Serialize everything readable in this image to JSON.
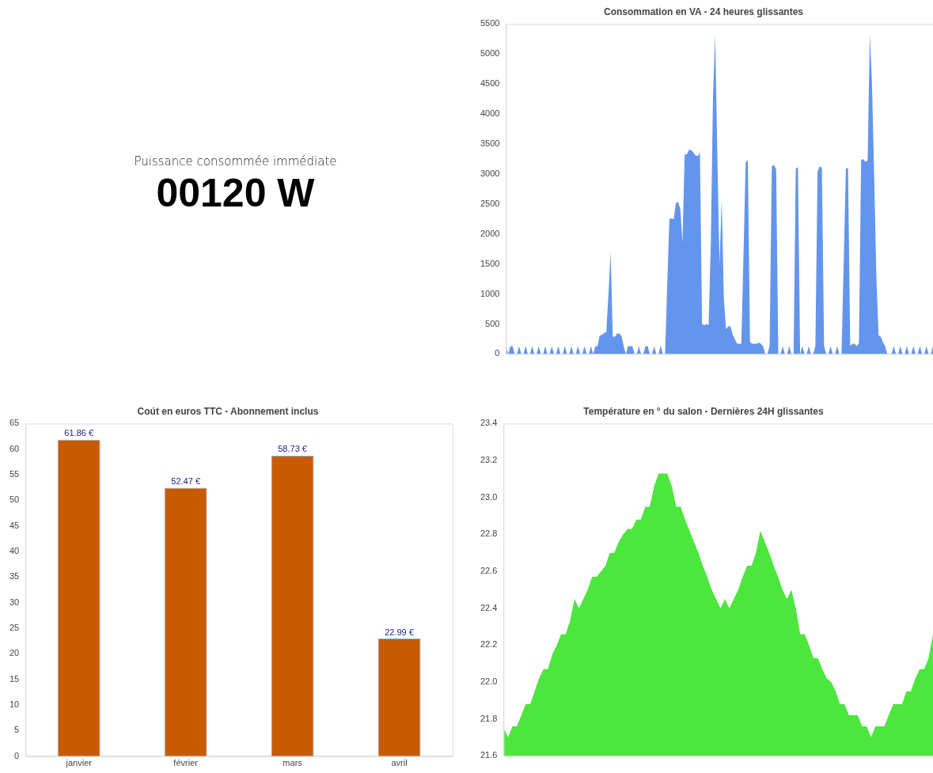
{
  "chart_data": [
    {
      "type": "other",
      "title": "Puissance consommée immédiate",
      "annotations": [
        "00120 W"
      ]
    },
    {
      "type": "area",
      "title": "Consommation en VA - 24 heures glissantes",
      "categories": [
        null,
        null,
        null,
        null,
        null,
        null,
        null,
        null,
        null,
        null,
        null,
        null,
        null,
        null,
        null,
        null,
        null,
        null,
        null,
        null,
        null,
        null,
        null,
        null,
        null,
        null,
        null,
        null,
        null,
        null,
        null,
        null,
        null,
        null,
        null,
        null,
        null,
        null,
        null,
        null,
        null,
        null,
        null,
        null,
        null,
        null,
        null,
        null,
        null,
        null,
        null,
        null,
        null,
        null,
        null,
        null,
        null,
        null,
        null,
        null,
        null,
        null,
        null,
        null,
        null,
        null,
        null,
        null,
        null,
        null,
        null,
        null,
        null,
        null,
        null,
        null,
        null,
        null,
        null,
        null,
        null,
        null,
        null,
        null,
        null,
        null,
        null,
        null,
        null,
        null,
        null,
        null,
        null,
        null,
        null,
        null,
        null,
        null,
        null,
        null,
        null,
        null,
        null,
        null,
        null,
        null,
        null,
        null,
        null,
        null,
        null,
        null,
        null,
        null,
        null,
        null,
        null,
        null,
        null,
        null,
        null,
        null,
        null,
        null,
        null,
        null,
        null,
        null,
        null,
        null,
        null,
        null,
        null,
        null,
        null,
        null,
        null,
        null,
        null,
        null,
        null,
        null,
        null,
        null,
        null,
        null,
        null,
        null,
        null,
        null,
        null,
        null,
        null,
        null,
        null,
        null,
        null,
        null,
        null,
        null,
        null,
        null,
        null,
        null,
        null,
        null,
        null,
        null,
        null,
        null,
        null,
        null,
        null,
        null,
        null,
        null,
        null,
        null,
        null,
        null,
        null,
        null,
        null,
        null,
        null,
        null,
        null,
        null,
        null,
        null,
        null,
        null,
        null,
        null,
        null,
        null,
        null
      ],
      "series": [
        {
          "color": "#6495ed",
          "values": [
            130,
            0,
            130,
            130,
            0,
            0,
            130,
            0,
            0,
            130,
            0,
            0,
            130,
            0,
            0,
            130,
            0,
            0,
            130,
            0,
            0,
            130,
            0,
            0,
            130,
            0,
            0,
            130,
            0,
            0,
            130,
            0,
            0,
            130,
            0,
            0,
            130,
            0,
            0,
            130,
            0,
            130,
            130,
            310,
            320,
            350,
            360,
            980,
            1700,
            290,
            290,
            340,
            340,
            300,
            130,
            0,
            130,
            130,
            130,
            0,
            0,
            130,
            0,
            0,
            130,
            130,
            0,
            0,
            130,
            0,
            0,
            140,
            0,
            0,
            1170,
            2250,
            2260,
            2250,
            2520,
            2530,
            2420,
            1860,
            3330,
            3330,
            3400,
            3400,
            3360,
            3310,
            3300,
            3360,
            500,
            480,
            500,
            480,
            1840,
            4290,
            5330,
            3310,
            1500,
            2580,
            920,
            410,
            460,
            460,
            330,
            250,
            170,
            170,
            170,
            1650,
            3200,
            3230,
            200,
            170,
            170,
            170,
            190,
            170,
            130,
            0,
            0,
            130,
            3130,
            3150,
            3080,
            0,
            0,
            130,
            0,
            0,
            130,
            0,
            0,
            3090,
            3110,
            0,
            130,
            0,
            0,
            130,
            0,
            0,
            130,
            3040,
            3130,
            3100,
            130,
            0,
            0,
            130,
            0,
            0,
            130,
            0,
            0,
            1520,
            3090,
            3100,
            130,
            170,
            170,
            130,
            180,
            3230,
            3250,
            3200,
            3230,
            5330,
            4510,
            2960,
            1290,
            310,
            290,
            200,
            130,
            0,
            0,
            0,
            130,
            0,
            0,
            130,
            0,
            0,
            130,
            0,
            0,
            130,
            0,
            0,
            130,
            0,
            0,
            130,
            0,
            0,
            130
          ]
        }
      ],
      "ylim": [
        0,
        5500
      ],
      "yticks": [
        0,
        500,
        1000,
        1500,
        2000,
        2500,
        3000,
        3500,
        4000,
        4500,
        5000,
        5500
      ],
      "tick_labels": "y",
      "grid": false,
      "legend": false
    },
    {
      "type": "bar",
      "title": "Coút en euros TTC - Abonnement inclus",
      "categories": [
        "janvier",
        "février",
        "mars",
        "avril"
      ],
      "series": [
        {
          "color": "#c85a00",
          "values": [
            61.86,
            52.47,
            58.73,
            22.99
          ],
          "value_labels": [
            "61.86 €",
            "52.47 €",
            "58.73 €",
            "22.99 €"
          ]
        }
      ],
      "ylim": [
        0,
        65
      ],
      "yticks": [
        0,
        5,
        10,
        15,
        20,
        25,
        30,
        35,
        40,
        45,
        50,
        55,
        60,
        65
      ],
      "grid": false,
      "legend": false
    },
    {
      "type": "area",
      "title": "Température en ° du salon - Dernières 24H glissantes",
      "categories": [
        null,
        null,
        null,
        null,
        null,
        null,
        null,
        null,
        null,
        null,
        null,
        null,
        null,
        null,
        null,
        null,
        null,
        null,
        null,
        null,
        null,
        null,
        null,
        null,
        null,
        null,
        null,
        null,
        null,
        null,
        null,
        null,
        null,
        null,
        null,
        null,
        null,
        null,
        null,
        null,
        null,
        null,
        null,
        null,
        null,
        null,
        null,
        null,
        null,
        null,
        null,
        null,
        null,
        null,
        null,
        null,
        null,
        null,
        null,
        null,
        null,
        null,
        null,
        null,
        null,
        null,
        null,
        null,
        null,
        null,
        null,
        null,
        null,
        null,
        null,
        null,
        null,
        null,
        null,
        null,
        null,
        null,
        null,
        null,
        null,
        null,
        null,
        null,
        null,
        null,
        null,
        null,
        null,
        null,
        null,
        null,
        null,
        null
      ],
      "series": [
        {
          "color": "#4ce63c",
          "values": [
            21.75,
            21.7,
            21.76,
            21.76,
            21.82,
            21.88,
            21.88,
            21.95,
            22.02,
            22.07,
            22.07,
            22.15,
            22.2,
            22.26,
            22.26,
            22.33,
            22.45,
            22.4,
            22.45,
            22.5,
            22.57,
            22.57,
            22.6,
            22.63,
            22.7,
            22.7,
            22.76,
            22.8,
            22.83,
            22.83,
            22.88,
            22.88,
            22.95,
            22.95,
            23.06,
            23.13,
            23.13,
            23.13,
            23.06,
            22.95,
            22.95,
            22.88,
            22.82,
            22.76,
            22.7,
            22.63,
            22.57,
            22.5,
            22.45,
            22.4,
            22.45,
            22.4,
            22.45,
            22.5,
            22.57,
            22.63,
            22.63,
            22.7,
            22.82,
            22.76,
            22.7,
            22.63,
            22.57,
            22.5,
            22.45,
            22.5,
            22.4,
            22.26,
            22.26,
            22.2,
            22.13,
            22.13,
            22.07,
            22.02,
            22.0,
            21.95,
            21.88,
            21.88,
            21.82,
            21.82,
            21.82,
            21.76,
            21.76,
            21.7,
            21.76,
            21.76,
            21.76,
            21.82,
            21.88,
            21.88,
            21.88,
            21.95,
            21.95,
            22.02,
            22.07,
            22.07,
            22.13,
            22.26
          ]
        }
      ],
      "ylim": [
        21.6,
        23.4
      ],
      "yticks": [
        {
          "value": 21.6,
          "label": "21.6"
        },
        {
          "value": 21.8,
          "label": "21.8"
        },
        {
          "value": 22,
          "label": "22.0"
        },
        {
          "value": 22.2,
          "label": "22.2"
        },
        {
          "value": 22.4,
          "label": "22.4"
        },
        {
          "value": 22.6,
          "label": "22.6"
        },
        {
          "value": 22.8,
          "label": "22.8"
        },
        {
          "value": 23,
          "label": "23.0"
        },
        {
          "value": 23.2,
          "label": "23.2"
        },
        {
          "value": 23.4,
          "label": "23.4"
        }
      ],
      "tick_labels": "y",
      "grid": false,
      "legend": false
    }
  ]
}
